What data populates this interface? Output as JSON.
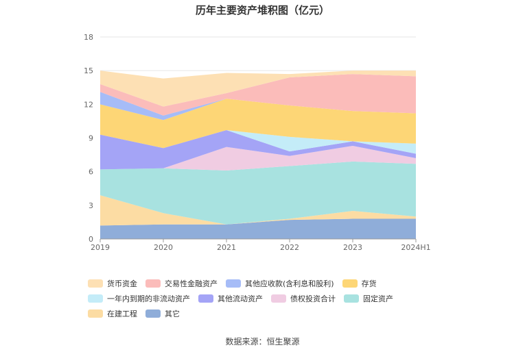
{
  "page": {
    "source_label": "数据来源：恒生聚源"
  },
  "chart_data": {
    "type": "area",
    "stacked": true,
    "title": "历年主要资产堆积图（亿元）",
    "categories": [
      "2019",
      "2020",
      "2021",
      "2022",
      "2023",
      "2024H1"
    ],
    "ylim": [
      0,
      18
    ],
    "yticks": [
      0,
      3,
      6,
      9,
      12,
      15,
      18
    ],
    "grid": true,
    "legend_position": "bottom",
    "series": [
      {
        "name": "其它",
        "color": "#8fadd9",
        "values": [
          1.2,
          1.3,
          1.3,
          1.7,
          1.8,
          1.8
        ]
      },
      {
        "name": "在建工程",
        "color": "#fcdca3",
        "values": [
          2.7,
          1.0,
          0.0,
          0.1,
          0.7,
          0.2
        ]
      },
      {
        "name": "固定资产",
        "color": "#a8e2e0",
        "values": [
          2.3,
          4.0,
          4.8,
          4.7,
          4.4,
          4.7
        ]
      },
      {
        "name": "债权投资合计",
        "color": "#f0cce2",
        "values": [
          0.0,
          0.0,
          2.1,
          0.9,
          1.4,
          0.5
        ]
      },
      {
        "name": "其他流动资产",
        "color": "#a4a4f6",
        "values": [
          3.1,
          1.8,
          1.5,
          0.4,
          0.4,
          0.4
        ]
      },
      {
        "name": "一年内到期的非流动资产",
        "color": "#c4ecf8",
        "values": [
          0.0,
          0.0,
          0.0,
          1.3,
          0.0,
          0.9
        ]
      },
      {
        "name": "存货",
        "color": "#fdd676",
        "values": [
          2.7,
          2.5,
          2.8,
          2.8,
          2.7,
          2.7
        ]
      },
      {
        "name": "其他应收款(含利息和股利)",
        "color": "#a6bcf7",
        "values": [
          1.1,
          0.4,
          0.0,
          0.0,
          0.0,
          0.0
        ]
      },
      {
        "name": "交易性金融资产",
        "color": "#fbbcba",
        "values": [
          0.7,
          0.8,
          0.5,
          2.5,
          3.3,
          3.3
        ]
      },
      {
        "name": "货币资金",
        "color": "#fde0b4",
        "values": [
          1.2,
          2.5,
          1.8,
          0.3,
          0.3,
          0.5
        ]
      }
    ],
    "legend_order": [
      "货币资金",
      "交易性金融资产",
      "其他应收款(含利息和股利)",
      "存货",
      "一年内到期的非流动资产",
      "其他流动资产",
      "债权投资合计",
      "固定资产",
      "在建工程",
      "其它"
    ]
  }
}
